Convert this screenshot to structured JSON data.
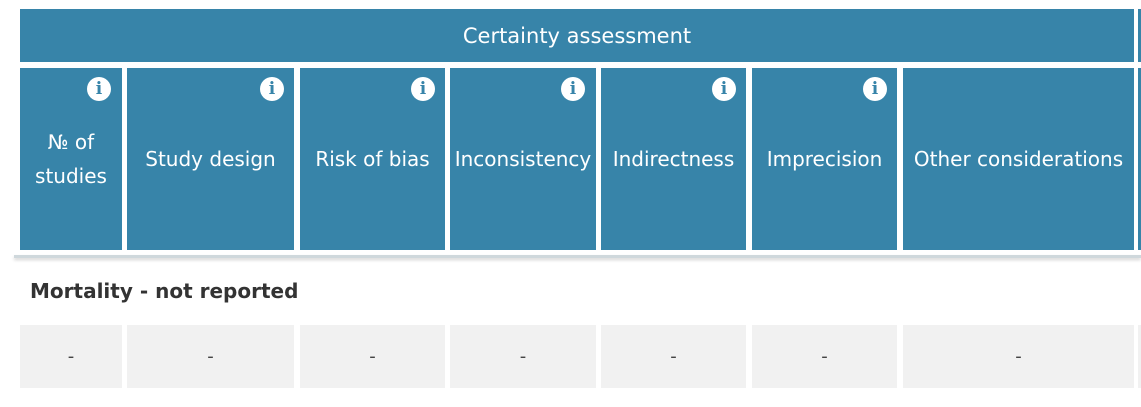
{
  "table": {
    "group_header": "Certainty assessment",
    "columns": [
      {
        "label": "№ of\nstudies",
        "has_info": true
      },
      {
        "label": "Study design",
        "has_info": true
      },
      {
        "label": "Risk of bias",
        "has_info": true
      },
      {
        "label": "Inconsistency",
        "has_info": true
      },
      {
        "label": "Indirectness",
        "has_info": true
      },
      {
        "label": "Imprecision",
        "has_info": true
      },
      {
        "label": "Other considerations",
        "has_info": false
      }
    ],
    "info_icon": "i",
    "outcome": {
      "title": "Mortality - not reported",
      "values": [
        "-",
        "-",
        "-",
        "-",
        "-",
        "-",
        "-"
      ]
    }
  },
  "colors": {
    "header_bg": "#3784a9",
    "header_text": "#ffffff",
    "row_bg": "#f1f1f1"
  }
}
